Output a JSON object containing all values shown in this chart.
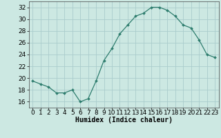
{
  "x": [
    0,
    1,
    2,
    3,
    4,
    5,
    6,
    7,
    8,
    9,
    10,
    11,
    12,
    13,
    14,
    15,
    16,
    17,
    18,
    19,
    20,
    21,
    22,
    23
  ],
  "y": [
    19.5,
    19.0,
    18.5,
    17.5,
    17.5,
    18.0,
    16.0,
    16.5,
    19.5,
    23.0,
    25.0,
    27.5,
    29.0,
    30.5,
    31.0,
    32.0,
    32.0,
    31.5,
    30.5,
    29.0,
    28.5,
    26.5,
    24.0,
    23.5
  ],
  "xlabel": "Humidex (Indice chaleur)",
  "bg_color": "#cce8e2",
  "grid_color": "#aacccc",
  "line_color": "#2e7d6e",
  "marker_color": "#2e7d6e",
  "ylim": [
    15,
    33
  ],
  "xlim": [
    -0.5,
    23.5
  ],
  "yticks": [
    16,
    18,
    20,
    22,
    24,
    26,
    28,
    30,
    32
  ],
  "xtick_vals": [
    0,
    1,
    2,
    3,
    4,
    5,
    6,
    7,
    8,
    9,
    10,
    11,
    12,
    13,
    14,
    15,
    16,
    17,
    18,
    19,
    20,
    21,
    22,
    23
  ],
  "xtick_labels": [
    "0",
    "1",
    "2",
    "3",
    "4",
    "5",
    "6",
    "7",
    "8",
    "9",
    "10",
    "11",
    "12",
    "13",
    "14",
    "15",
    "16",
    "17",
    "18",
    "19",
    "20",
    "21",
    "22",
    "23"
  ],
  "xlabel_fontsize": 7,
  "tick_fontsize": 6.5
}
